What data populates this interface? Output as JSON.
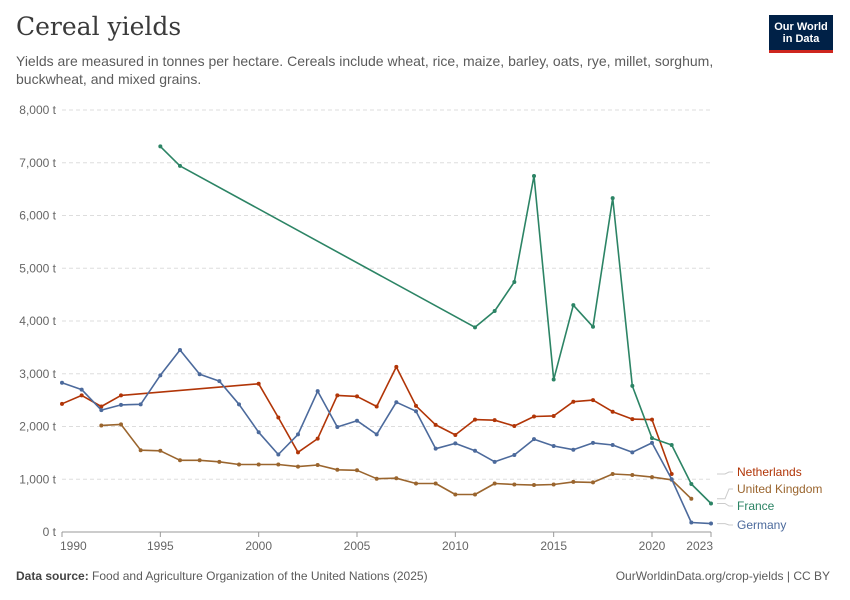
{
  "header": {
    "title": "Cereal yields",
    "subtitle": "Yields are measured in tonnes per hectare. Cereals include wheat, rice, maize, barley, oats, rye, millet, sorghum, buckwheat, and mixed grains.",
    "logo_line1": "Our World",
    "logo_line2": "in Data"
  },
  "footer": {
    "source_label": "Data source:",
    "source_text": "Food and Agriculture Organization of the United Nations (2025)",
    "url": "OurWorldinData.org/crop-yields | CC BY"
  },
  "colors": {
    "Netherlands": "#b13507",
    "United Kingdom": "#9a652e",
    "France": "#2c8465",
    "Germany": "#4c6a9c"
  },
  "chart_data": {
    "type": "line",
    "title": "Cereal yields",
    "ylim": [
      0,
      8000
    ],
    "xlim": [
      1990,
      2023
    ],
    "y_ticks": [
      0,
      1000,
      2000,
      3000,
      4000,
      5000,
      6000,
      7000,
      8000
    ],
    "y_tick_labels": [
      "0 t",
      "1,000 t",
      "2,000 t",
      "3,000 t",
      "4,000 t",
      "5,000 t",
      "6,000 t",
      "7,000 t",
      "8,000 t"
    ],
    "x_ticks": [
      1990,
      1995,
      2000,
      2005,
      2010,
      2015,
      2020,
      2023
    ],
    "x_tick_labels": [
      "1990",
      "1995",
      "2000",
      "2005",
      "2010",
      "2015",
      "2020",
      "2023"
    ],
    "grid": "horizontal dashed",
    "legend": "right, at line ends",
    "series": [
      {
        "name": "Netherlands",
        "color": "#b13507",
        "x": [
          1990,
          1991,
          1992,
          1993,
          2000,
          2001,
          2002,
          2003,
          2004,
          2005,
          2006,
          2007,
          2008,
          2009,
          2010,
          2011,
          2012,
          2013,
          2014,
          2015,
          2016,
          2017,
          2018,
          2019,
          2020,
          2021
        ],
        "y": [
          2430,
          2590,
          2380,
          2590,
          2810,
          2170,
          1510,
          1770,
          2590,
          2570,
          2380,
          3130,
          2390,
          2030,
          1840,
          2130,
          2120,
          2010,
          2190,
          2200,
          2470,
          2500,
          2280,
          2140,
          2130,
          1100
        ]
      },
      {
        "name": "United Kingdom",
        "color": "#9a652e",
        "x": [
          1992,
          1993,
          1994,
          1995,
          1996,
          1997,
          1998,
          1999,
          2000,
          2001,
          2002,
          2003,
          2004,
          2005,
          2006,
          2007,
          2008,
          2009,
          2010,
          2011,
          2012,
          2013,
          2014,
          2015,
          2016,
          2017,
          2018,
          2019,
          2020,
          2021,
          2022
        ],
        "y": [
          2020,
          2040,
          1550,
          1540,
          1360,
          1360,
          1330,
          1280,
          1280,
          1280,
          1240,
          1270,
          1180,
          1170,
          1010,
          1020,
          920,
          920,
          710,
          710,
          920,
          900,
          890,
          900,
          950,
          940,
          1100,
          1080,
          1040,
          990,
          630
        ]
      },
      {
        "name": "France",
        "color": "#2c8465",
        "x": [
          1995,
          1996,
          2011,
          2012,
          2013,
          2014,
          2015,
          2016,
          2017,
          2018,
          2019,
          2020,
          2021,
          2022,
          2023
        ],
        "y": [
          7310,
          6940,
          3880,
          4190,
          4740,
          6750,
          2890,
          4300,
          3890,
          6330,
          2770,
          1780,
          1650,
          910,
          540
        ]
      },
      {
        "name": "Germany",
        "color": "#4c6a9c",
        "x": [
          1990,
          1991,
          1992,
          1993,
          1994,
          1995,
          1996,
          1997,
          1998,
          1999,
          2000,
          2001,
          2002,
          2003,
          2004,
          2005,
          2006,
          2007,
          2008,
          2009,
          2010,
          2011,
          2012,
          2013,
          2014,
          2015,
          2016,
          2017,
          2018,
          2019,
          2020,
          2021,
          2022,
          2023
        ],
        "y": [
          2830,
          2700,
          2310,
          2410,
          2420,
          2970,
          3450,
          2990,
          2860,
          2420,
          1890,
          1470,
          1850,
          2670,
          1990,
          2110,
          1850,
          2460,
          2290,
          1580,
          1680,
          1540,
          1330,
          1460,
          1760,
          1630,
          1560,
          1690,
          1650,
          1510,
          1690,
          1000,
          180,
          160
        ]
      }
    ]
  }
}
